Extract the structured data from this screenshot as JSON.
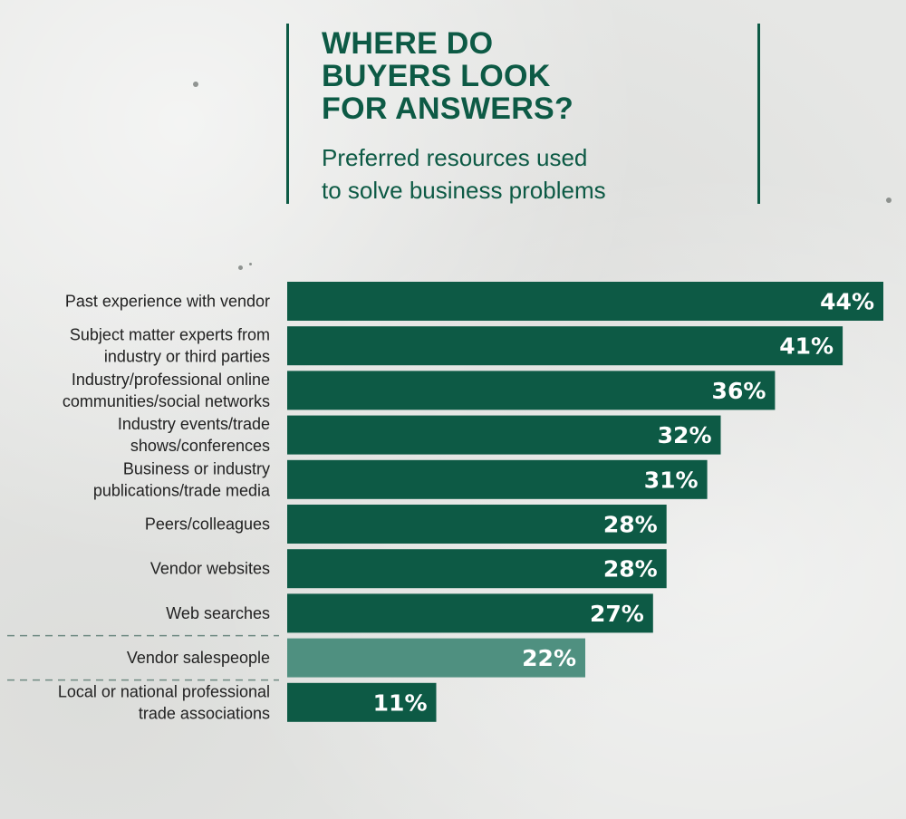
{
  "header": {
    "title": "WHERE DO\nBUYERS LOOK\nFOR ANSWERS?",
    "subtitle": "Preferred resources used\nto solve business problems"
  },
  "colors": {
    "primary_bar": "#0d5a45",
    "highlight_bar": "#4f9080",
    "text_green": "#0d5a45",
    "divider": "#6f8a82"
  },
  "chart_data": {
    "type": "bar",
    "orientation": "horizontal",
    "categories": [
      "Past experience with vendor",
      "Subject matter experts from\nindustry or third parties",
      "Industry/professional online\ncommunities/social networks",
      "Industry events/trade\nshows/conferences",
      "Business or industry\npublications/trade media",
      "Peers/colleagues",
      "Vendor websites",
      "Web searches",
      "Vendor salespeople",
      "Local or national professional\ntrade associations"
    ],
    "values": [
      44,
      41,
      36,
      32,
      31,
      28,
      28,
      27,
      22,
      11
    ],
    "value_labels": [
      "44%",
      "41%",
      "36%",
      "32%",
      "31%",
      "28%",
      "28%",
      "27%",
      "22%",
      "11%"
    ],
    "highlighted": "Vendor salespeople",
    "xlim": [
      0,
      44
    ],
    "grid": false,
    "legend": "none"
  }
}
